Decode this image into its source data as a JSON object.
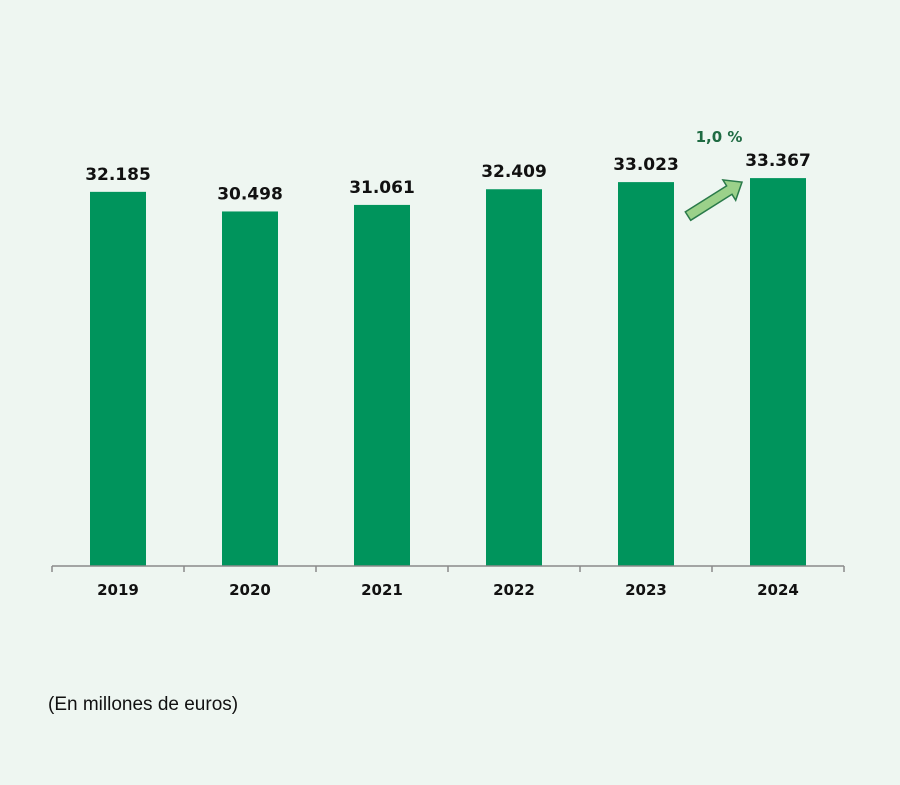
{
  "chart_data": {
    "type": "bar",
    "categories": [
      "2019",
      "2020",
      "2021",
      "2022",
      "2023",
      "2024"
    ],
    "values": [
      32185,
      30498,
      31061,
      32409,
      33023,
      33367
    ],
    "value_labels": [
      "32.185",
      "30.498",
      "31.061",
      "32.409",
      "33.023",
      "33.367"
    ],
    "ylim": [
      0,
      48000
    ],
    "grid": false,
    "annotation": {
      "text": "1,0 %",
      "from": "2023",
      "to": "2024"
    },
    "note": "(En millones de euros)"
  },
  "colors": {
    "bar": "#00945c",
    "axis": "#8a8a8a",
    "arrow_fill": "#9bd18a",
    "arrow_stroke": "#2a7a4a",
    "annotation_text": "#1f6b43"
  }
}
